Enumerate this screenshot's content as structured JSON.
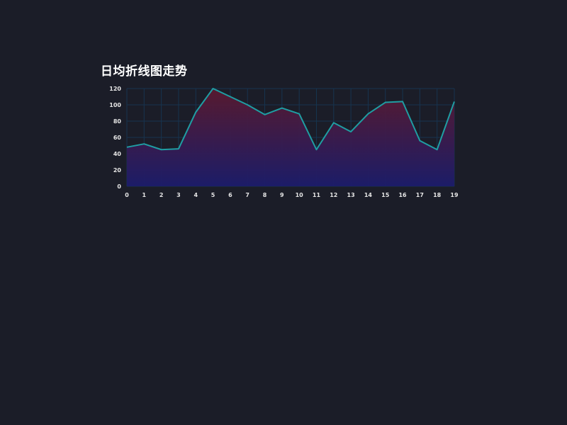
{
  "colors": {
    "background": "#1b1d28",
    "line": "#1f9ea3",
    "grid": "#17344f",
    "axis_text": "#e6e6e6",
    "title": "#ffffff",
    "area_top": "#5a1a2f",
    "area_bottom": "#1c1c6b"
  },
  "chart_data": {
    "type": "area",
    "title": "日均折线图走势",
    "xlabel": "",
    "ylabel": "",
    "x": [
      0,
      1,
      2,
      3,
      4,
      5,
      6,
      7,
      8,
      9,
      10,
      11,
      12,
      13,
      14,
      15,
      16,
      17,
      18,
      19
    ],
    "categories": [
      "0",
      "1",
      "2",
      "3",
      "4",
      "5",
      "6",
      "7",
      "8",
      "9",
      "10",
      "11",
      "12",
      "13",
      "14",
      "15",
      "16",
      "17",
      "18",
      "19"
    ],
    "series": [
      {
        "values": [
          48,
          52,
          45,
          46,
          91,
          120,
          110,
          100,
          88,
          96,
          89,
          45,
          78,
          67,
          89,
          103,
          104,
          56,
          45,
          104
        ]
      }
    ],
    "ylim": [
      0,
      120
    ],
    "yticks": [
      "0",
      "20",
      "40",
      "60",
      "80",
      "100",
      "120"
    ],
    "grid": true,
    "legend": "none"
  }
}
